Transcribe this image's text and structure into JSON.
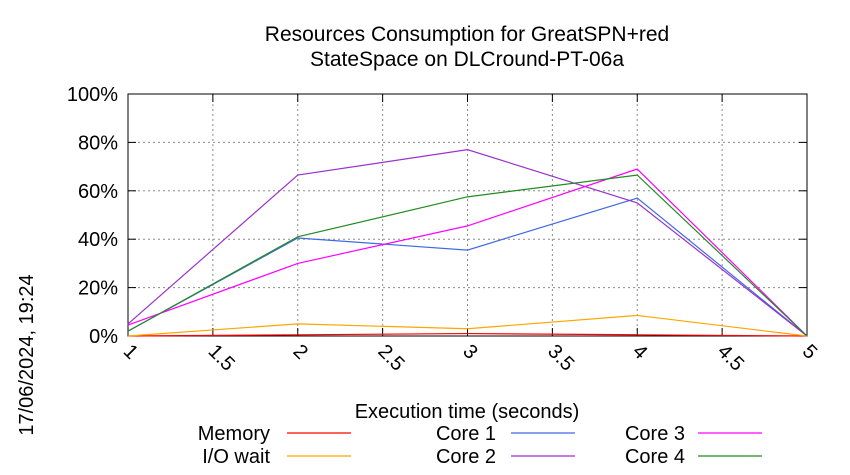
{
  "chart_data": {
    "type": "line",
    "title_lines": [
      "Resources Consumption for GreatSPN+red",
      "StateSpace on DLCround-PT-06a"
    ],
    "xlabel": "Execution time (seconds)",
    "ylabel": "",
    "xlim": [
      1,
      5
    ],
    "ylim": [
      0,
      100
    ],
    "x_ticks": [
      "1",
      "1.5",
      "2",
      "2.5",
      "3",
      "3.5",
      "4",
      "4.5",
      "5"
    ],
    "y_ticks": [
      "0%",
      "20%",
      "40%",
      "60%",
      "80%",
      "100%"
    ],
    "grid": true,
    "legend_position": "bottom",
    "x": [
      1,
      2,
      3,
      4,
      5
    ],
    "series": [
      {
        "name": "Memory",
        "color": "#ff0000",
        "values": [
          0,
          0.5,
          1,
          0.5,
          0
        ]
      },
      {
        "name": "I/O wait",
        "color": "#ffa500",
        "values": [
          0,
          5,
          3,
          8.5,
          0
        ]
      },
      {
        "name": "Core 1",
        "color": "#4169e1",
        "values": [
          2,
          40.5,
          35.5,
          57,
          0
        ]
      },
      {
        "name": "Core 2",
        "color": "#9932cc",
        "values": [
          5,
          66.5,
          77,
          55,
          0
        ]
      },
      {
        "name": "Core 3",
        "color": "#ff00ff",
        "values": [
          4.5,
          30,
          45.5,
          69,
          0
        ]
      },
      {
        "name": "Core 4",
        "color": "#228b22",
        "values": [
          2,
          41,
          57.5,
          66.5,
          0
        ]
      }
    ]
  },
  "timestamp": "17/06/2024, 19:24"
}
